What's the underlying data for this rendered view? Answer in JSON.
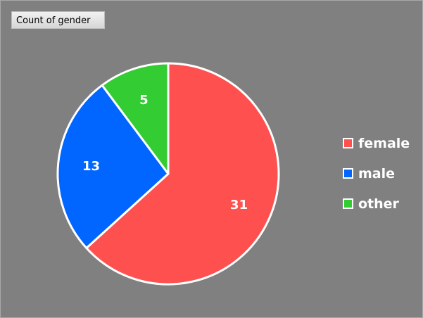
{
  "title": "Count of gender",
  "colors": {
    "background": "#808080",
    "female": "#ff5050",
    "male": "#0066ff",
    "other": "#33cc33",
    "slice_border": "#ffffff"
  },
  "chart_data": {
    "type": "pie",
    "title": "Count of gender",
    "categories": [
      "female",
      "male",
      "other"
    ],
    "values": [
      31,
      13,
      5
    ],
    "legend_position": "right",
    "series": [
      {
        "name": "female",
        "value": 31,
        "color": "#ff5050"
      },
      {
        "name": "male",
        "value": 13,
        "color": "#0066ff"
      },
      {
        "name": "other",
        "value": 5,
        "color": "#33cc33"
      }
    ]
  }
}
